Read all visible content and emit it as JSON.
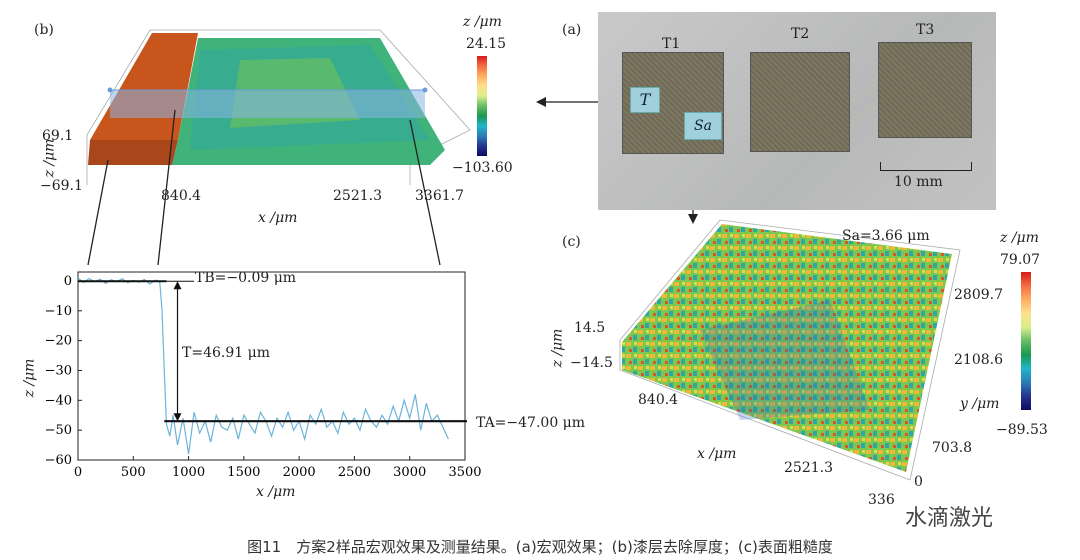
{
  "panel_b": {
    "label": "(b)",
    "cbar_unit": "z /μm",
    "cbar_max": "24.15",
    "cbar_min": "−103.60",
    "z_axis": "z /μm",
    "z_hi": "69.1",
    "z_lo": "−69.1",
    "x_ticks": [
      "840.4",
      "2521.3",
      "3361.7"
    ],
    "x_label": "x /μm"
  },
  "panel_a": {
    "label": "(a)",
    "samples": [
      "T1",
      "T2",
      "T3"
    ],
    "tag_t": "T",
    "tag_sa": "Sa",
    "scale": "10 mm"
  },
  "panel_c": {
    "label": "(c)",
    "sa_text": "Sa=3.66 μm",
    "cbar_unit": "z /μm",
    "cbar_max": "79.07",
    "cbar_min": "−89.53",
    "z_axis": "z /μm",
    "z_hi": "14.5",
    "z_lo": "−14.5",
    "x_ticks": [
      "840.4",
      "2521.3",
      "336"
    ],
    "x_label": "x /μm",
    "y_ticks": [
      "2809.7",
      "2108.6",
      "703.8",
      "0"
    ],
    "y_label": "y /μm"
  },
  "profile": {
    "tb_label": "TB=−0.09 μm",
    "t_label": "T=46.91 μm",
    "ta_label": "TA=−47.00 μm",
    "x_label": "x /μm",
    "y_label": "z /μm",
    "x_ticks": [
      "0",
      "500",
      "1000",
      "1500",
      "2000",
      "2500",
      "3000",
      "3500"
    ],
    "y_ticks": [
      "0",
      "−10",
      "−20",
      "−30",
      "−40",
      "−50",
      "−60"
    ]
  },
  "chart_data": {
    "type": "line",
    "xlabel": "x /μm",
    "ylabel": "z /μm",
    "xlim": [
      0,
      3500
    ],
    "ylim": [
      -60,
      3
    ],
    "series": [
      {
        "x": [
          0,
          50,
          100,
          150,
          200,
          250,
          300,
          350,
          400,
          450,
          500,
          550,
          600,
          650,
          700,
          740,
          760,
          780,
          800,
          830,
          860,
          900,
          950,
          1000,
          1050,
          1100,
          1150,
          1200,
          1250,
          1300,
          1350,
          1400,
          1450,
          1500,
          1550,
          1600,
          1650,
          1700,
          1750,
          1800,
          1850,
          1900,
          1950,
          2000,
          2050,
          2100,
          2150,
          2200,
          2250,
          2300,
          2350,
          2400,
          2450,
          2500,
          2550,
          2600,
          2650,
          2700,
          2750,
          2800,
          2850,
          2900,
          2950,
          3000,
          3050,
          3100,
          3150,
          3200,
          3250,
          3300,
          3350
        ],
        "y": [
          1,
          -0.5,
          0.8,
          -0.3,
          0.6,
          -0.8,
          0.4,
          -0.2,
          0.7,
          -0.6,
          0.2,
          -0.4,
          0.5,
          -1,
          0.3,
          -0.5,
          -10,
          -30,
          -48,
          -52,
          -45,
          -55,
          -46,
          -58,
          -44,
          -51,
          -47,
          -54,
          -45,
          -49,
          -50,
          -46,
          -53,
          -45,
          -48,
          -51,
          -44,
          -47,
          -52,
          -46,
          -49,
          -44,
          -50,
          -47,
          -53,
          -45,
          -48,
          -43,
          -49,
          -47,
          -51,
          -44,
          -48,
          -46,
          -50,
          -43,
          -47,
          -49,
          -45,
          -48,
          -42,
          -47,
          -40,
          -46,
          -38,
          -50,
          -41,
          -47,
          -45,
          -49,
          -53
        ]
      }
    ],
    "reference_lines": [
      {
        "y": -0.09,
        "label": "TB=−0.09 μm"
      },
      {
        "y": -47.0,
        "label": "TA=−47.00 μm"
      }
    ]
  },
  "caption": "图11　方案2样品宏观效果及测量结果。(a)宏观效果；(b)漆层去除厚度；(c)表面粗糙度",
  "watermark": "水滴激光"
}
